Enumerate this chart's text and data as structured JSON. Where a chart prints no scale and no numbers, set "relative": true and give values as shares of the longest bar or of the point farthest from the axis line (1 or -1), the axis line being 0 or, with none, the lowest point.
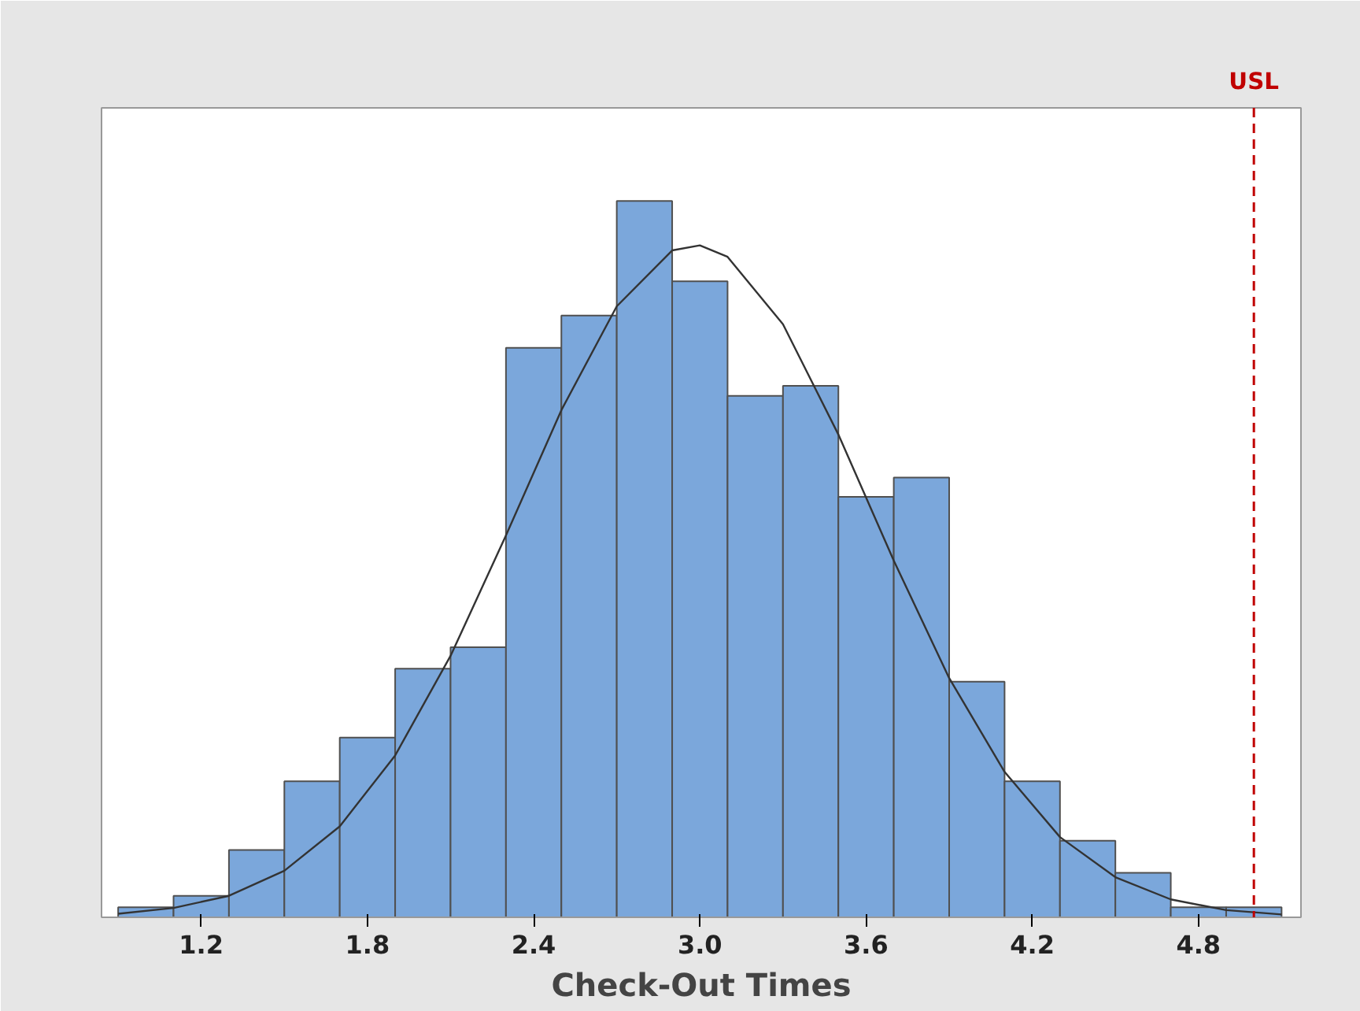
{
  "chart_data": {
    "type": "histogram",
    "relative": true,
    "xlabel": "Check-Out Times",
    "bins": [
      0.9,
      1.1,
      1.3,
      1.5,
      1.7,
      1.9,
      2.1,
      2.3,
      2.5,
      2.7,
      2.9,
      3.1,
      3.3,
      3.5,
      3.7,
      3.9,
      4.1,
      4.3,
      4.5,
      4.7,
      4.9,
      5.1
    ],
    "values": [
      0.014,
      0.03,
      0.094,
      0.19,
      0.251,
      0.347,
      0.377,
      0.795,
      0.84,
      1,
      0.888,
      0.728,
      0.742,
      0.587,
      0.614,
      0.329,
      0.19,
      0.107,
      0.062,
      0.014,
      0.014
    ],
    "color": "#7ba7db",
    "series": [
      {
        "type": "line",
        "color": "#333333",
        "x": [
          0.9,
          1.1,
          1.3,
          1.5,
          1.7,
          1.9,
          2.1,
          2.3,
          2.5,
          2.7,
          2.9,
          3.0,
          3.1,
          3.3,
          3.5,
          3.7,
          3.9,
          4.1,
          4.3,
          4.5,
          4.7,
          4.9,
          5.1
        ],
        "values": [
          0.005,
          0.013,
          0.03,
          0.065,
          0.127,
          0.226,
          0.365,
          0.533,
          0.708,
          0.853,
          0.931,
          0.938,
          0.922,
          0.828,
          0.674,
          0.498,
          0.334,
          0.203,
          0.112,
          0.056,
          0.025,
          0.01,
          0.004
        ]
      }
    ],
    "xlim": [
      0.84,
      5.17
    ],
    "xticks": [
      {
        "value": 1.2,
        "label": "1.2"
      },
      {
        "value": 1.8,
        "label": "1.8"
      },
      {
        "value": 2.4,
        "label": "2.4"
      },
      {
        "value": 3.0,
        "label": "3.0"
      },
      {
        "value": 3.6,
        "label": "3.6"
      },
      {
        "value": 4.2,
        "label": "4.2"
      },
      {
        "value": 4.8,
        "label": "4.8"
      }
    ],
    "ref_lines": [
      {
        "axis": "x",
        "value": 5.0,
        "label": "USL",
        "color": "#c00000",
        "line_style": "dashed"
      }
    ],
    "grid": false
  }
}
